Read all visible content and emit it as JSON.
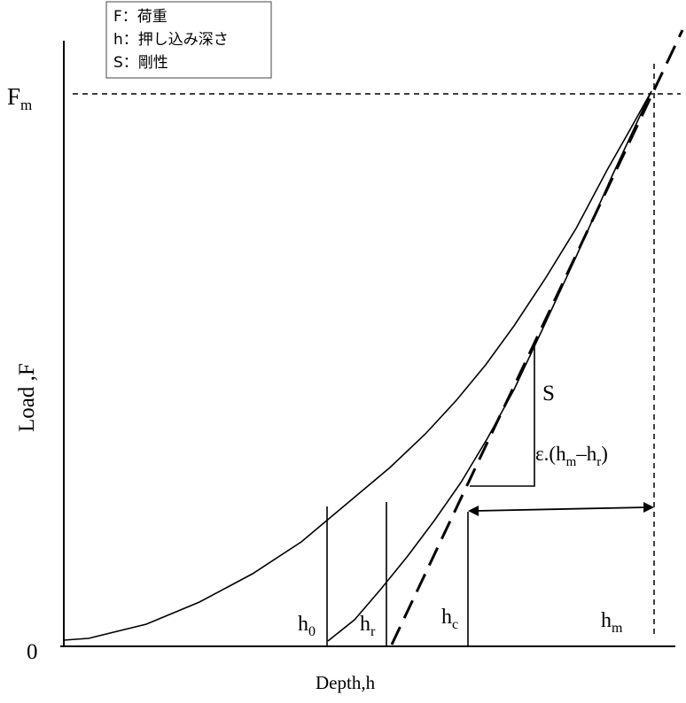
{
  "legend": {
    "items": [
      {
        "symbol": "F",
        "sep": "：",
        "label": "荷重"
      },
      {
        "symbol": "h",
        "sep": "：",
        "label": "押し込み深さ"
      },
      {
        "symbol": "S",
        "sep": "：",
        "label": "剛性"
      }
    ]
  },
  "axes": {
    "y_label": "Load ,F",
    "x_label": "Depth,h",
    "origin_label": "0",
    "fm_base": "F",
    "fm_sub": "m"
  },
  "depth_markers": [
    {
      "base": "h",
      "sub": "0"
    },
    {
      "base": "h",
      "sub": "r"
    },
    {
      "base": "h",
      "sub": "c"
    },
    {
      "base": "h",
      "sub": "m"
    }
  ],
  "slope_label": "S",
  "epsilon_label": {
    "prefix": "ε.(h",
    "sub1": "m",
    "middle": "–h",
    "sub2": "r",
    "suffix": ")"
  }
}
